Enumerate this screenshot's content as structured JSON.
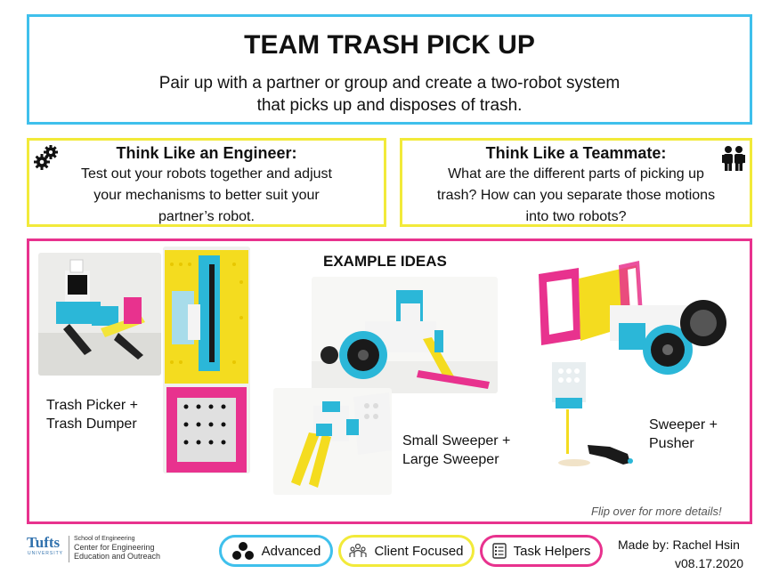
{
  "header": {
    "title": "TEAM TRASH PICK UP",
    "subtitle_line1": "Pair up with a partner or group and create a two-robot system",
    "subtitle_line2": "that picks up and disposes of trash."
  },
  "engineer": {
    "heading": "Think Like an Engineer:",
    "line1": "Test out your robots together and adjust",
    "line2": "your mechanisms to better suit your",
    "line3": "partner’s robot.",
    "icon": "gears-icon"
  },
  "teammate": {
    "heading": "Think Like a Teammate:",
    "line1": "What are the different parts of picking up",
    "line2": "trash? How can you separate those motions",
    "line3": "into two robots?",
    "icon": "people-icon"
  },
  "examples": {
    "heading": "EXAMPLE IDEAS",
    "idea1_line1": "Trash Picker +",
    "idea1_line2": "Trash Dumper",
    "idea2_line1": "Small Sweeper +",
    "idea2_line2": "Large Sweeper",
    "idea3_line1": "Sweeper +",
    "idea3_line2": "Pusher",
    "flip_note": "Flip over for more details!"
  },
  "footer": {
    "logo_text": "Tufts",
    "logo_small": "UNIVERSITY",
    "school_line1": "School of Engineering",
    "school_line2": "Center for Engineering",
    "school_line3": "Education and Outreach",
    "pill1": "Advanced",
    "pill2": "Client Focused",
    "pill3": "Task Helpers",
    "made_by": "Made by: Rachel Hsin",
    "version": "v08.17.2020"
  },
  "colors": {
    "blue": "#3fc0ec",
    "yellow": "#f2ea3a",
    "pink": "#e8328e",
    "tufts_blue": "#3172ae"
  }
}
